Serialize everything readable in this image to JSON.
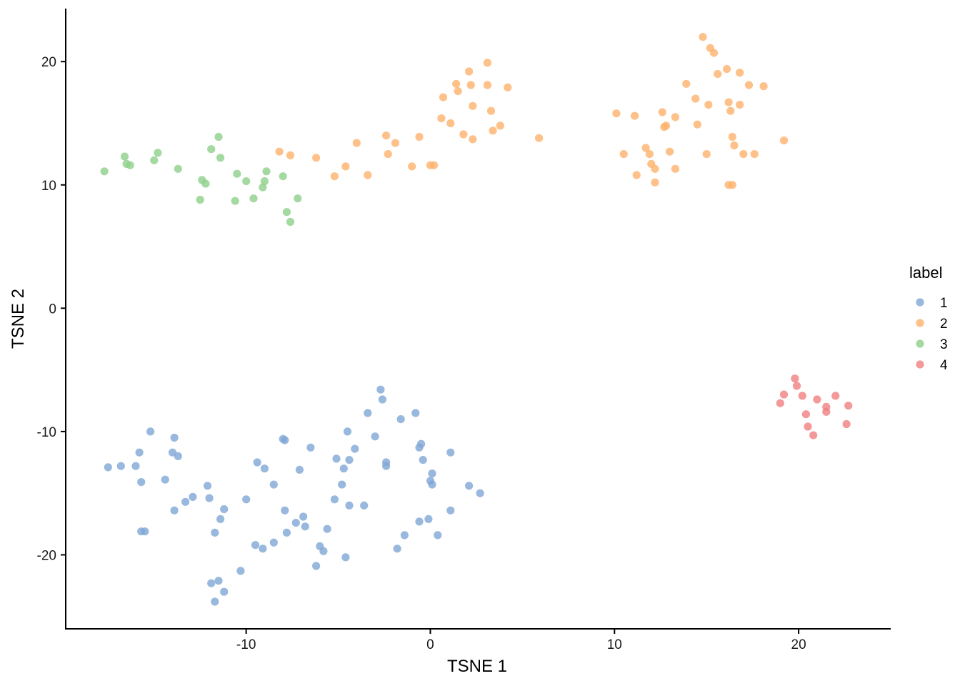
{
  "chart_data": {
    "type": "scatter",
    "xlabel": "TSNE 1",
    "ylabel": "TSNE 2",
    "xlim": [
      -19.8,
      25
    ],
    "ylim": [
      -26,
      24.3
    ],
    "xticks": [
      -10,
      0,
      10,
      20
    ],
    "yticks": [
      -20,
      -10,
      0,
      10,
      20
    ],
    "grid": false,
    "legend": {
      "title": "label",
      "position": "right"
    },
    "series": [
      {
        "name": "1",
        "color": "#7FA6D6",
        "points": [
          [
            -17.5,
            -12.9
          ],
          [
            -16.8,
            -12.8
          ],
          [
            -16.0,
            -12.8
          ],
          [
            -15.8,
            -11.7
          ],
          [
            -15.7,
            -14.1
          ],
          [
            -15.7,
            -18.1
          ],
          [
            -15.5,
            -18.1
          ],
          [
            -15.2,
            -10.0
          ],
          [
            -14.4,
            -13.9
          ],
          [
            -14.0,
            -11.7
          ],
          [
            -13.9,
            -10.5
          ],
          [
            -13.9,
            -16.4
          ],
          [
            -13.7,
            -12.0
          ],
          [
            -13.3,
            -15.7
          ],
          [
            -12.9,
            -15.3
          ],
          [
            -12.1,
            -14.4
          ],
          [
            -12.0,
            -15.4
          ],
          [
            -11.9,
            -22.3
          ],
          [
            -11.7,
            -23.8
          ],
          [
            -11.7,
            -18.2
          ],
          [
            -11.5,
            -22.1
          ],
          [
            -11.4,
            -17.1
          ],
          [
            -11.2,
            -16.3
          ],
          [
            -11.2,
            -23.0
          ],
          [
            -10.3,
            -21.3
          ],
          [
            -10.0,
            -15.5
          ],
          [
            -9.5,
            -19.2
          ],
          [
            -9.4,
            -12.5
          ],
          [
            -9.1,
            -19.5
          ],
          [
            -9.0,
            -13.0
          ],
          [
            -8.5,
            -14.3
          ],
          [
            -8.5,
            -19.0
          ],
          [
            -8.0,
            -10.6
          ],
          [
            -7.9,
            -16.4
          ],
          [
            -7.9,
            -10.7
          ],
          [
            -7.8,
            -18.2
          ],
          [
            -7.3,
            -17.4
          ],
          [
            -7.1,
            -13.1
          ],
          [
            -6.9,
            -16.9
          ],
          [
            -6.8,
            -17.7
          ],
          [
            -6.5,
            -11.3
          ],
          [
            -6.2,
            -20.9
          ],
          [
            -6.0,
            -19.3
          ],
          [
            -5.8,
            -19.7
          ],
          [
            -5.6,
            -17.9
          ],
          [
            -5.2,
            -15.5
          ],
          [
            -5.1,
            -12.2
          ],
          [
            -4.8,
            -14.3
          ],
          [
            -4.7,
            -13.0
          ],
          [
            -4.6,
            -20.2
          ],
          [
            -4.5,
            -10.0
          ],
          [
            -4.4,
            -12.3
          ],
          [
            -4.4,
            -16.0
          ],
          [
            -4.1,
            -11.4
          ],
          [
            -3.6,
            -16.0
          ],
          [
            -3.4,
            -8.5
          ],
          [
            -3.0,
            -10.4
          ],
          [
            -2.7,
            -6.6
          ],
          [
            -2.6,
            -7.4
          ],
          [
            -2.4,
            -12.8
          ],
          [
            -2.4,
            -12.5
          ],
          [
            -1.8,
            -19.5
          ],
          [
            -1.6,
            -9.0
          ],
          [
            -1.4,
            -18.4
          ],
          [
            -0.8,
            -8.5
          ],
          [
            -0.6,
            -17.3
          ],
          [
            -0.6,
            -11.3
          ],
          [
            -0.5,
            -11.0
          ],
          [
            -0.4,
            -12.3
          ],
          [
            -0.1,
            -17.1
          ],
          [
            0.0,
            -14.0
          ],
          [
            0.1,
            -13.4
          ],
          [
            0.1,
            -14.3
          ],
          [
            0.4,
            -18.4
          ],
          [
            1.1,
            -11.7
          ],
          [
            1.1,
            -16.4
          ],
          [
            2.1,
            -14.4
          ],
          [
            2.7,
            -15.0
          ]
        ]
      },
      {
        "name": "2",
        "color": "#FDB26B",
        "points": [
          [
            -8.2,
            12.7
          ],
          [
            -7.6,
            12.4
          ],
          [
            -6.2,
            12.2
          ],
          [
            -5.2,
            10.7
          ],
          [
            -4.6,
            11.5
          ],
          [
            -4.0,
            13.4
          ],
          [
            -3.4,
            10.8
          ],
          [
            -2.4,
            14.0
          ],
          [
            -2.3,
            12.5
          ],
          [
            -1.9,
            13.4
          ],
          [
            -1.0,
            11.5
          ],
          [
            -0.6,
            13.9
          ],
          [
            0.0,
            11.6
          ],
          [
            0.2,
            11.6
          ],
          [
            0.6,
            15.4
          ],
          [
            0.7,
            17.1
          ],
          [
            1.1,
            15.0
          ],
          [
            1.4,
            18.2
          ],
          [
            1.5,
            17.6
          ],
          [
            1.8,
            14.1
          ],
          [
            2.1,
            19.2
          ],
          [
            2.2,
            18.1
          ],
          [
            2.3,
            13.7
          ],
          [
            2.3,
            16.4
          ],
          [
            3.1,
            18.1
          ],
          [
            3.1,
            19.9
          ],
          [
            3.3,
            16.0
          ],
          [
            3.4,
            14.4
          ],
          [
            3.8,
            14.8
          ],
          [
            4.2,
            17.9
          ],
          [
            5.9,
            13.8
          ],
          [
            10.1,
            15.8
          ],
          [
            10.5,
            12.5
          ],
          [
            11.1,
            15.6
          ],
          [
            11.2,
            10.8
          ],
          [
            11.7,
            13.0
          ],
          [
            11.9,
            12.5
          ],
          [
            12.0,
            11.7
          ],
          [
            12.2,
            11.3
          ],
          [
            12.2,
            10.2
          ],
          [
            12.6,
            15.9
          ],
          [
            12.7,
            14.7
          ],
          [
            12.8,
            14.8
          ],
          [
            13.0,
            12.7
          ],
          [
            13.3,
            11.3
          ],
          [
            13.3,
            15.5
          ],
          [
            13.9,
            18.2
          ],
          [
            14.4,
            17.0
          ],
          [
            14.5,
            14.9
          ],
          [
            14.8,
            22.0
          ],
          [
            15.0,
            12.5
          ],
          [
            15.1,
            16.5
          ],
          [
            15.2,
            21.1
          ],
          [
            15.4,
            20.7
          ],
          [
            15.6,
            19.0
          ],
          [
            16.1,
            19.4
          ],
          [
            16.2,
            16.7
          ],
          [
            16.2,
            10.0
          ],
          [
            16.3,
            16.0
          ],
          [
            16.4,
            10.0
          ],
          [
            16.4,
            13.9
          ],
          [
            16.5,
            13.2
          ],
          [
            16.8,
            19.1
          ],
          [
            16.8,
            16.5
          ],
          [
            17.0,
            12.5
          ],
          [
            17.3,
            18.1
          ],
          [
            17.6,
            12.5
          ],
          [
            18.1,
            18.0
          ],
          [
            19.2,
            13.6
          ]
        ]
      },
      {
        "name": "3",
        "color": "#8DD08A",
        "points": [
          [
            -17.7,
            11.1
          ],
          [
            -16.6,
            12.3
          ],
          [
            -16.5,
            11.7
          ],
          [
            -16.3,
            11.6
          ],
          [
            -15.0,
            12.0
          ],
          [
            -14.8,
            12.6
          ],
          [
            -13.7,
            11.3
          ],
          [
            -12.5,
            8.8
          ],
          [
            -12.4,
            10.4
          ],
          [
            -12.2,
            10.1
          ],
          [
            -11.9,
            12.9
          ],
          [
            -11.5,
            13.9
          ],
          [
            -11.4,
            12.2
          ],
          [
            -10.6,
            8.7
          ],
          [
            -10.5,
            10.9
          ],
          [
            -10.0,
            10.3
          ],
          [
            -9.6,
            8.9
          ],
          [
            -9.1,
            9.8
          ],
          [
            -9.0,
            10.3
          ],
          [
            -8.9,
            11.1
          ],
          [
            -8.0,
            10.7
          ],
          [
            -7.8,
            7.8
          ],
          [
            -7.6,
            7.0
          ],
          [
            -7.2,
            8.9
          ]
        ]
      },
      {
        "name": "4",
        "color": "#F08080",
        "points": [
          [
            19.0,
            -7.7
          ],
          [
            19.2,
            -7.0
          ],
          [
            19.8,
            -5.7
          ],
          [
            19.9,
            -6.3
          ],
          [
            20.2,
            -7.1
          ],
          [
            20.4,
            -8.6
          ],
          [
            20.5,
            -9.6
          ],
          [
            20.8,
            -10.3
          ],
          [
            21.0,
            -7.4
          ],
          [
            21.5,
            -8.0
          ],
          [
            21.5,
            -8.4
          ],
          [
            22.0,
            -7.1
          ],
          [
            22.6,
            -9.4
          ],
          [
            22.7,
            -7.9
          ]
        ]
      }
    ]
  }
}
